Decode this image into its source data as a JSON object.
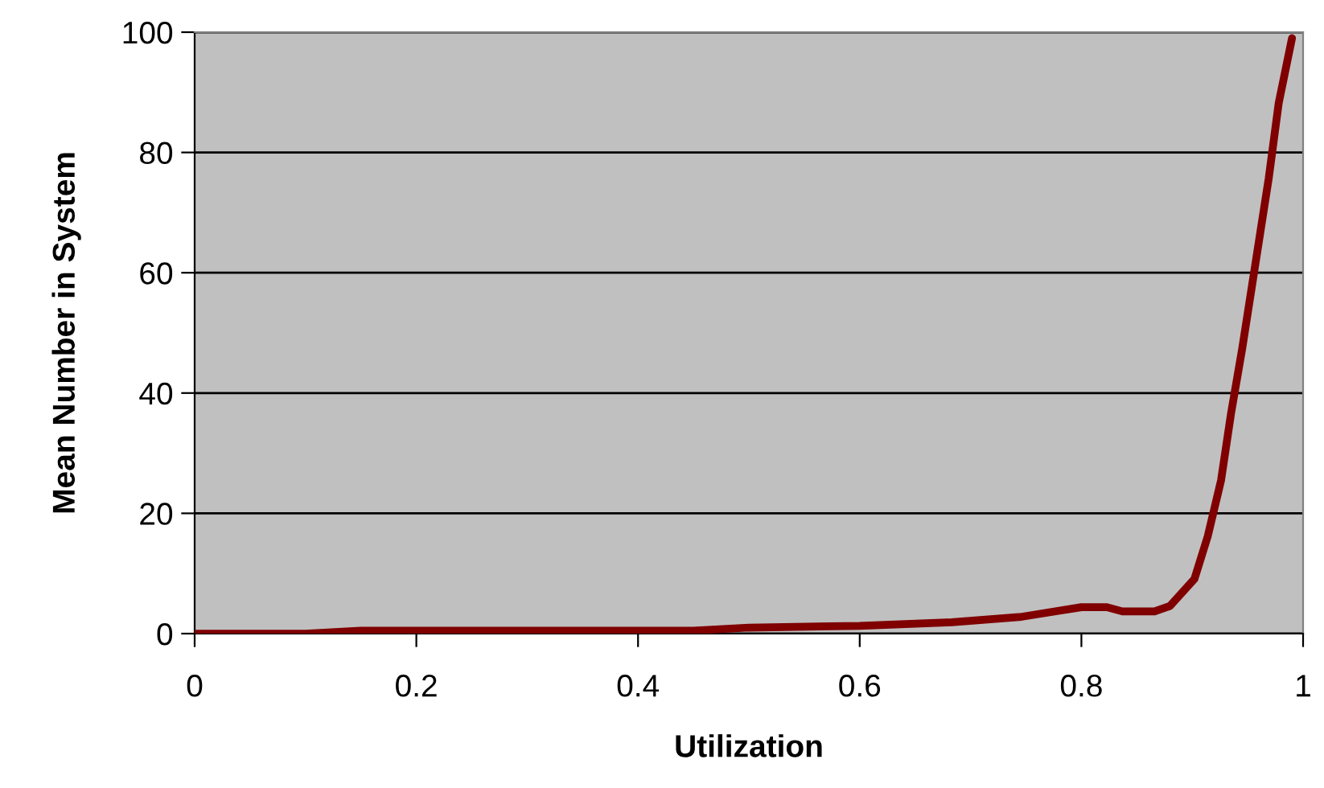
{
  "chart_data": {
    "type": "line",
    "xlabel": "Utilization",
    "ylabel": "Mean Number in System",
    "series": [
      {
        "color": "#800000",
        "x": [
          0,
          0.05,
          0.1,
          0.15,
          0.2,
          0.3,
          0.4,
          0.45,
          0.5,
          0.6,
          0.683,
          0.746,
          0.8,
          0.823,
          0.837,
          0.866,
          0.88,
          0.902,
          0.914,
          0.926,
          0.935,
          0.945,
          0.957,
          0.969,
          0.978,
          0.99
        ],
        "values": [
          0,
          0,
          0,
          0.5,
          0.5,
          0.5,
          0.5,
          0.5,
          1,
          1.3,
          1.9,
          2.8,
          4.4,
          4.4,
          3.7,
          3.7,
          4.6,
          9.1,
          16.2,
          25.5,
          36.6,
          47.3,
          61.5,
          75.7,
          88.2,
          99
        ]
      }
    ],
    "xlim": [
      0,
      1
    ],
    "xticks": [
      0,
      0.2,
      0.4,
      0.6,
      0.8,
      1
    ],
    "ylim": [
      0,
      100
    ],
    "yticks": [
      0,
      20,
      40,
      60,
      80,
      100
    ],
    "grid": "y",
    "line_style": "solid",
    "marker": "none"
  }
}
